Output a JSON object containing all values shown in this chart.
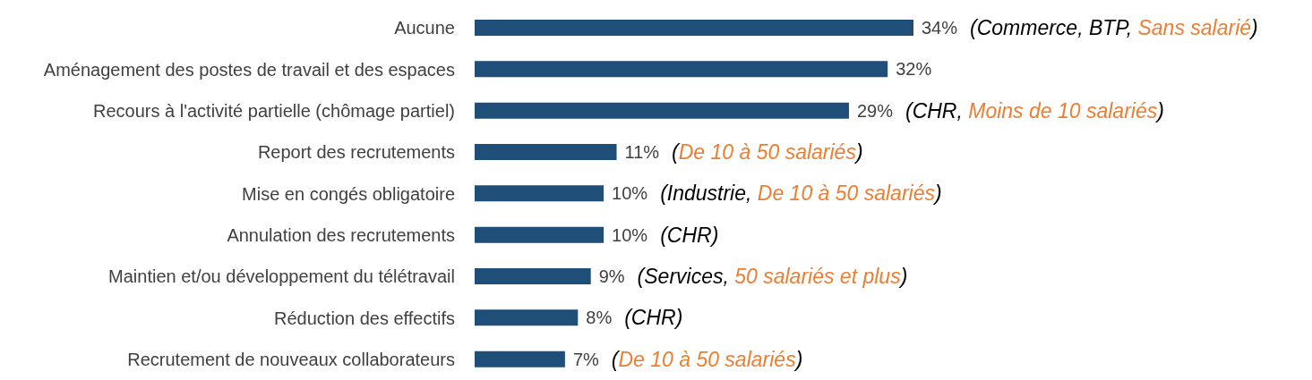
{
  "chart_data": {
    "type": "bar",
    "orientation": "horizontal",
    "categories": [
      "Aucune",
      "Aménagement des postes de travail et des espaces",
      "Recours à l'activité partielle (chômage partiel)",
      "Report des recrutements",
      "Mise en congés obligatoire",
      "Annulation des recrutements",
      "Maintien et/ou développement du télétravail",
      "Réduction des effectifs",
      "Recrutement de nouveaux collaborateurs"
    ],
    "values": [
      34,
      32,
      29,
      11,
      10,
      10,
      9,
      8,
      7
    ],
    "value_labels": [
      "34%",
      "32%",
      "29%",
      "11%",
      "10%",
      "10%",
      "9%",
      "8%",
      "7%"
    ],
    "color": "#1f4e79",
    "tick_labels": "y",
    "grid": false,
    "legend": false,
    "annotations": [
      {
        "text": "(Commerce, BTP, ",
        "x": 34,
        "y": "Aucune"
      },
      "Sans salarié",
      ")",
      {
        "text": "(CHR, ",
        "x": 29,
        "y": "Recours à l'activité partielle (chômage partiel)"
      },
      "Moins de 10 salariés",
      ")",
      {
        "text": "(",
        "x": 11,
        "y": "Report des recrutements"
      },
      "De 10 à 50 salariés",
      ")",
      {
        "text": "(Industrie, ",
        "x": 10,
        "y": "Mise en congés obligatoire"
      },
      "De 10 à 50 salariés",
      ")",
      {
        "text": "(CHR)",
        "x": 10,
        "y": "Annulation des recrutements"
      },
      {
        "text": "(Services, ",
        "x": 9,
        "y": "Maintien et/ou développement du télétravail"
      },
      "50 salariés et plus",
      ")",
      {
        "text": "(CHR)",
        "x": 8,
        "y": "Réduction des effectifs"
      },
      {
        "text": "(",
        "x": 7,
        "y": "Recrutement de nouveaux collaborateurs"
      },
      "De 10 à 50 salariés",
      ")"
    ]
  }
}
